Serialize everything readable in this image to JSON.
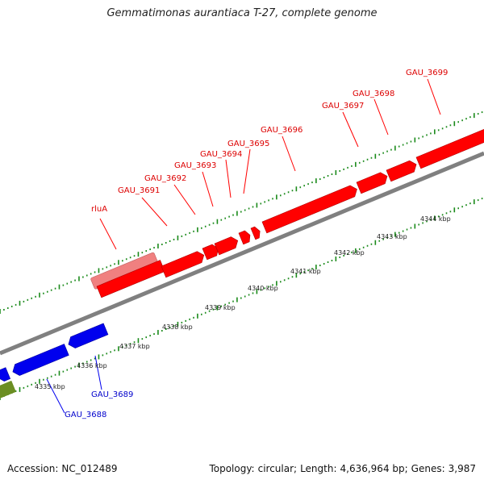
{
  "title": "Gemmatimonas aurantiaca T-27, complete genome",
  "footer": {
    "accession_label": "Accession:",
    "accession_value": "NC_012489",
    "topology_label": "Topology:",
    "topology_value": "circular;",
    "length_label": "Length:",
    "length_value": "4,636,964 bp;",
    "genes_label": "Genes:",
    "genes_value": "3,987"
  },
  "colors": {
    "forward_strand_gene": "#ff0000",
    "forward_strand_gene_highlight": "#f08080",
    "reverse_strand_gene": "#0000ee",
    "other_feature": "#6b8e23",
    "genome_backbone": "#808080",
    "tick_major": "#1a8a1a",
    "tick_minor": "#1a8a1a",
    "forward_label": "#dd0000",
    "reverse_label": "#0000cc",
    "scale_label": "#222222"
  },
  "scale_labels": [
    "4335 kbp",
    "4336 kbp",
    "4337 kbp",
    "4338 kbp",
    "4339 kbp",
    "4340 kbp",
    "4341 kbp",
    "4342 kbp",
    "4343 kbp",
    "4344 kbp"
  ],
  "forward_gene_labels": [
    "rluA",
    "GAU_3691",
    "GAU_3692",
    "GAU_3693",
    "GAU_3694",
    "GAU_3695",
    "GAU_3696",
    "GAU_3697",
    "GAU_3698",
    "GAU_3699"
  ],
  "reverse_gene_labels": [
    "GAU_3688",
    "GAU_3689"
  ]
}
